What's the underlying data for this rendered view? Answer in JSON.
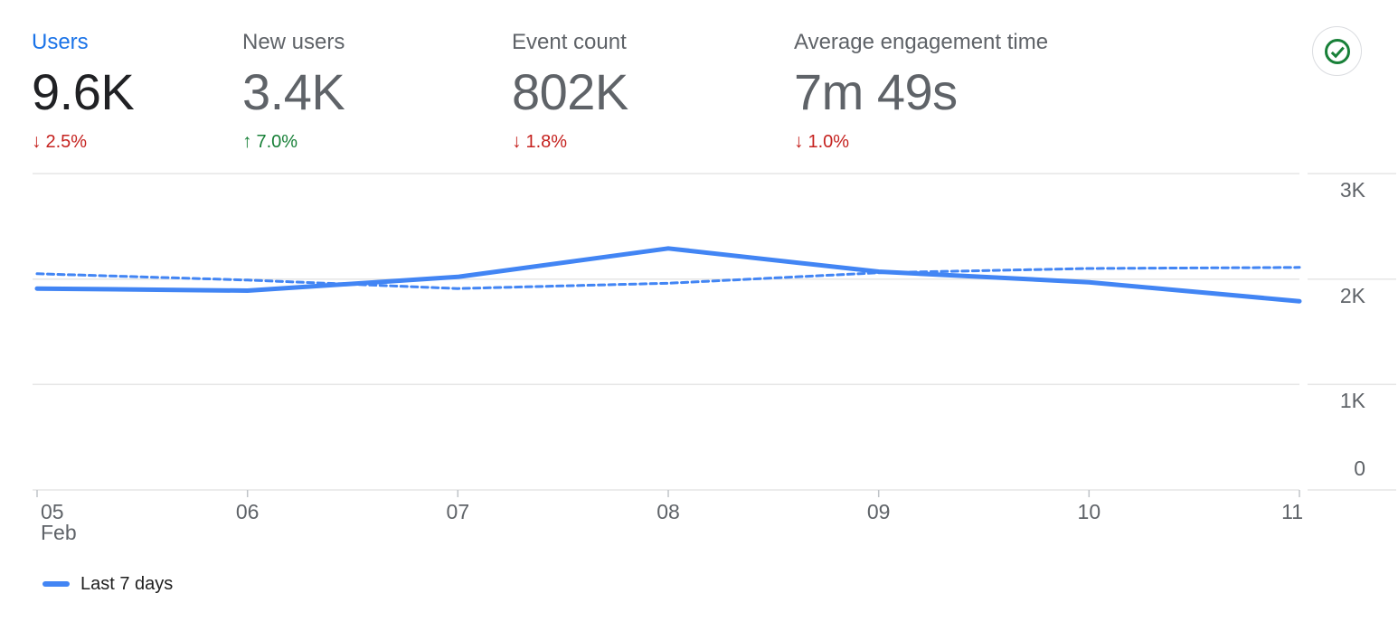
{
  "metrics": [
    {
      "label": "Users",
      "value": "9.6K",
      "arrow": "↓",
      "delta": "2.5%",
      "direction": "down",
      "selected": true
    },
    {
      "label": "New users",
      "value": "3.4K",
      "arrow": "↑",
      "delta": "7.0%",
      "direction": "up",
      "selected": false
    },
    {
      "label": "Event count",
      "value": "802K",
      "arrow": "↓",
      "delta": "1.8%",
      "direction": "down",
      "selected": false
    },
    {
      "label": "Average engagement time",
      "value": "7m 49s",
      "arrow": "↓",
      "delta": "1.0%",
      "direction": "down",
      "selected": false
    }
  ],
  "status_icon": "check-circle",
  "colors": {
    "accent_blue": "#1a73e8",
    "line_blue": "#4285f4",
    "negative_red": "#c5221f",
    "positive_green": "#188038",
    "label_gray": "#5f6368",
    "value_black": "#202124",
    "gridline": "#e6e6e6",
    "tick": "#c0c4c8"
  },
  "chart_data": {
    "type": "line",
    "x_labels": [
      "05",
      "06",
      "07",
      "08",
      "09",
      "10",
      "11"
    ],
    "month_label": "Feb",
    "series": [
      {
        "name": "Last 7 days",
        "style": "solid",
        "values": [
          1910,
          1890,
          2020,
          2290,
          2070,
          1970,
          1790
        ]
      },
      {
        "name": "",
        "style": "dashed",
        "values": [
          2050,
          1990,
          1910,
          1960,
          2060,
          2100,
          2110
        ]
      }
    ],
    "ylim": [
      0,
      3000
    ],
    "yticks": [
      {
        "value": 0,
        "label": "0"
      },
      {
        "value": 1000,
        "label": "1K"
      },
      {
        "value": 2000,
        "label": "2K"
      },
      {
        "value": 3000,
        "label": "3K"
      }
    ],
    "legend": [
      {
        "label": "Last 7 days"
      }
    ],
    "grid": "horizontal",
    "legend_position": "bottom-left"
  }
}
